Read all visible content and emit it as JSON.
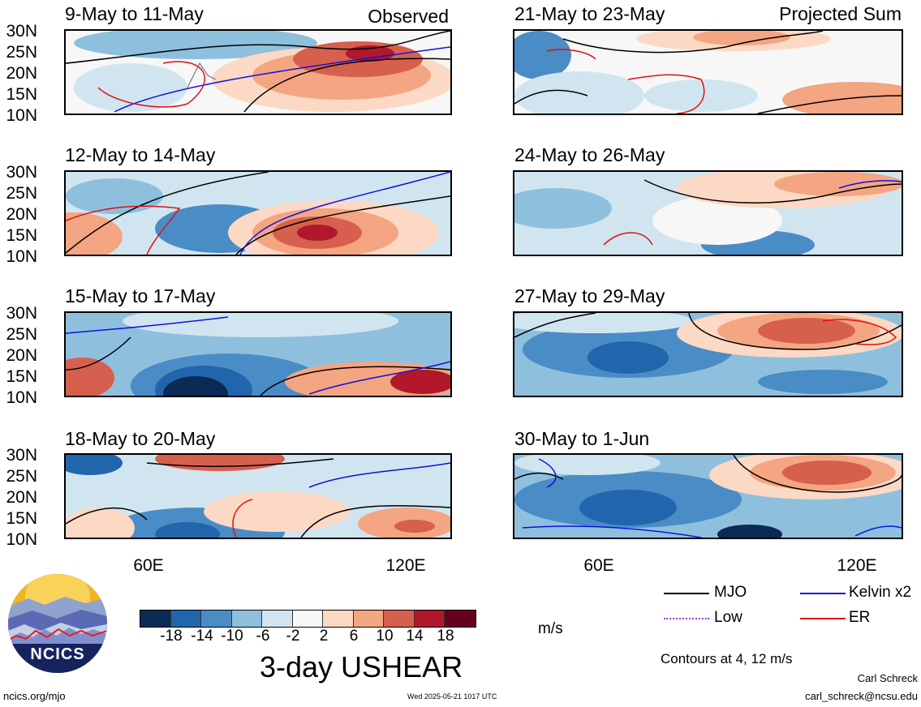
{
  "header": {
    "observed_label": "Observed",
    "projected_label": "Projected Sum"
  },
  "panels_left": [
    {
      "date": "9-May to 11-May"
    },
    {
      "date": "12-May to 14-May"
    },
    {
      "date": "15-May to 17-May"
    },
    {
      "date": "18-May to 20-May"
    }
  ],
  "panels_right": [
    {
      "date": "21-May to 23-May"
    },
    {
      "date": "24-May to 26-May"
    },
    {
      "date": "27-May to 29-May"
    },
    {
      "date": "30-May to 1-Jun"
    }
  ],
  "axes": {
    "lat_labels": [
      "30N",
      "25N",
      "20N",
      "15N",
      "10N"
    ],
    "lon_labels": [
      "60E",
      "120E"
    ]
  },
  "colorbar": {
    "labels": [
      "-18",
      "-14",
      "-10",
      "-6",
      "-2",
      "2",
      "6",
      "10",
      "14",
      "18"
    ],
    "unit": "m/s",
    "colors": [
      "#0b2a55",
      "#2166ac",
      "#4a8cc6",
      "#8ec0de",
      "#d1e5f0",
      "#f7f7f7",
      "#fcd9c4",
      "#f4a582",
      "#d6604d",
      "#b2182b",
      "#67001f"
    ]
  },
  "title": "3-day USHEAR",
  "legend": {
    "mjo": "MJO",
    "kelvin": "Kelvin x2",
    "low": "Low",
    "er": "ER",
    "contours_note": "Contours at 4, 12 m/s",
    "colors": {
      "mjo": "#000000",
      "kelvin": "#1010e0",
      "low": "#a040e0",
      "er": "#e01010"
    }
  },
  "logo": {
    "text": "NCICS"
  },
  "footer": {
    "url": "ncics.org/mjo",
    "timestamp": "Wed 2025-05-21 1017 UTC",
    "author": "Carl Schreck",
    "email": "carl_schreck@ncsu.edu"
  }
}
